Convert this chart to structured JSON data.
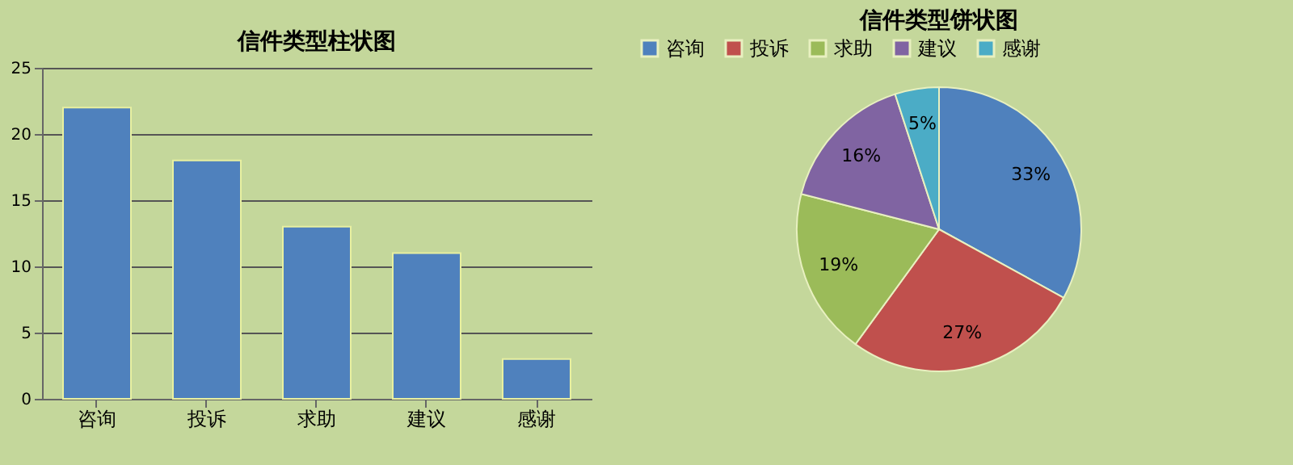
{
  "chart_data": [
    {
      "type": "bar",
      "title": "信件类型柱状图",
      "categories": [
        "咨询",
        "投诉",
        "求助",
        "建议",
        "感谢"
      ],
      "values": [
        22,
        18,
        13,
        11,
        3
      ],
      "color": "#4f81bd",
      "ylim": [
        0,
        25
      ],
      "yticks": [
        0,
        5,
        10,
        15,
        20,
        25
      ],
      "grid": "y"
    },
    {
      "type": "pie",
      "title": "信件类型饼状图",
      "categories": [
        "咨询",
        "投诉",
        "求助",
        "建议",
        "感谢"
      ],
      "values": [
        33,
        27,
        19,
        16,
        5
      ],
      "colors": [
        "#4f81bd",
        "#c0504d",
        "#9bbb59",
        "#8064a2",
        "#4bacc6"
      ],
      "value_labels": [
        "33%",
        "27%",
        "19%",
        "16%",
        "5%"
      ],
      "legend": "top"
    }
  ]
}
